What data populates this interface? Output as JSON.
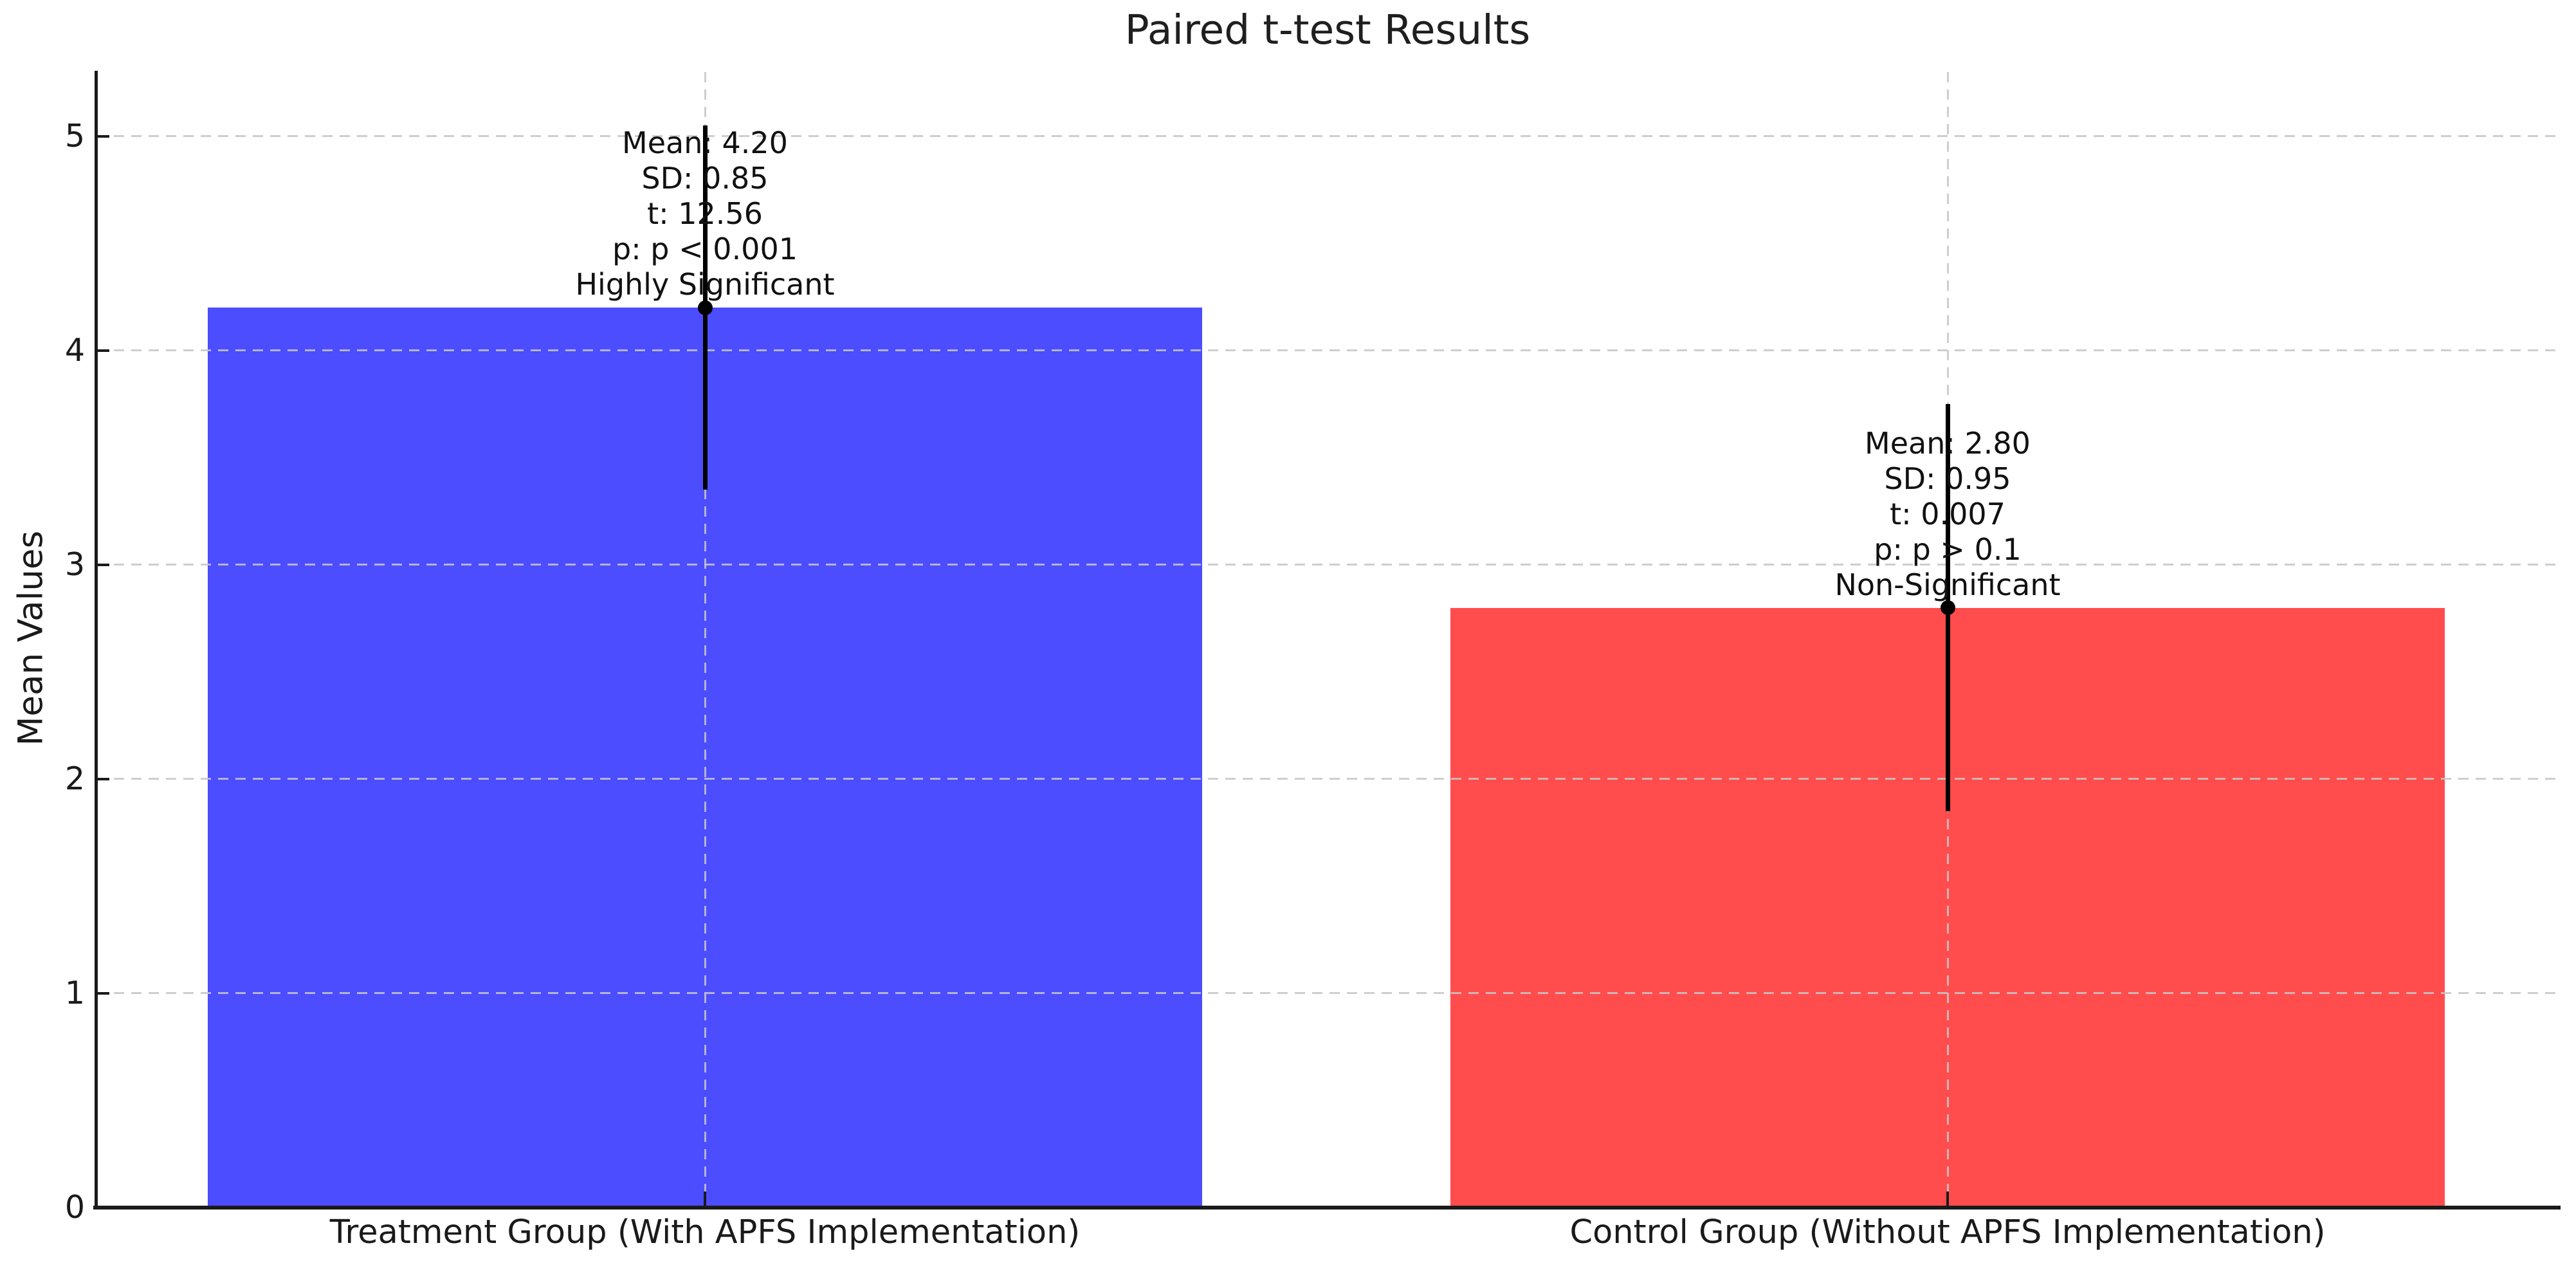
{
  "title": "Paired t-test Results",
  "ylabel": "Mean Values",
  "chart_data": {
    "type": "bar",
    "title": "Paired t-test Results",
    "xlabel": "",
    "ylabel": "Mean Values",
    "categories": [
      "Treatment Group (With APFS Implementation)",
      "Control Group (Without APFS Implementation)"
    ],
    "series": [
      {
        "name": "Mean",
        "values": [
          4.2,
          2.8
        ]
      }
    ],
    "error_sd": [
      0.85,
      0.95
    ],
    "stats": [
      {
        "mean": "4.20",
        "sd": "0.85",
        "t": "12.56",
        "p": "p < 0.001",
        "significance": "Highly Significant"
      },
      {
        "mean": "2.80",
        "sd": "0.95",
        "t": "0.007",
        "p": "p > 0.1",
        "significance": "Non-Significant"
      }
    ],
    "annotations": [
      {
        "lines": [
          "Mean: 4.20",
          "SD: 0.85",
          "t: 12.56",
          "p: p < 0.001",
          "Highly Significant"
        ]
      },
      {
        "lines": [
          "Mean: 2.80",
          "SD: 0.95",
          "t: 0.007",
          "p: p > 0.1",
          "Non-Significant"
        ]
      }
    ],
    "yticks": [
      0,
      1,
      2,
      3,
      4,
      5
    ],
    "ylim": [
      0,
      5.3
    ],
    "grid": "dashed",
    "legend_position": "none",
    "bar_colors": [
      "#4c4dff",
      "#ff4d4d"
    ],
    "error_color": "#000000",
    "grid_color": "#cccccc"
  }
}
